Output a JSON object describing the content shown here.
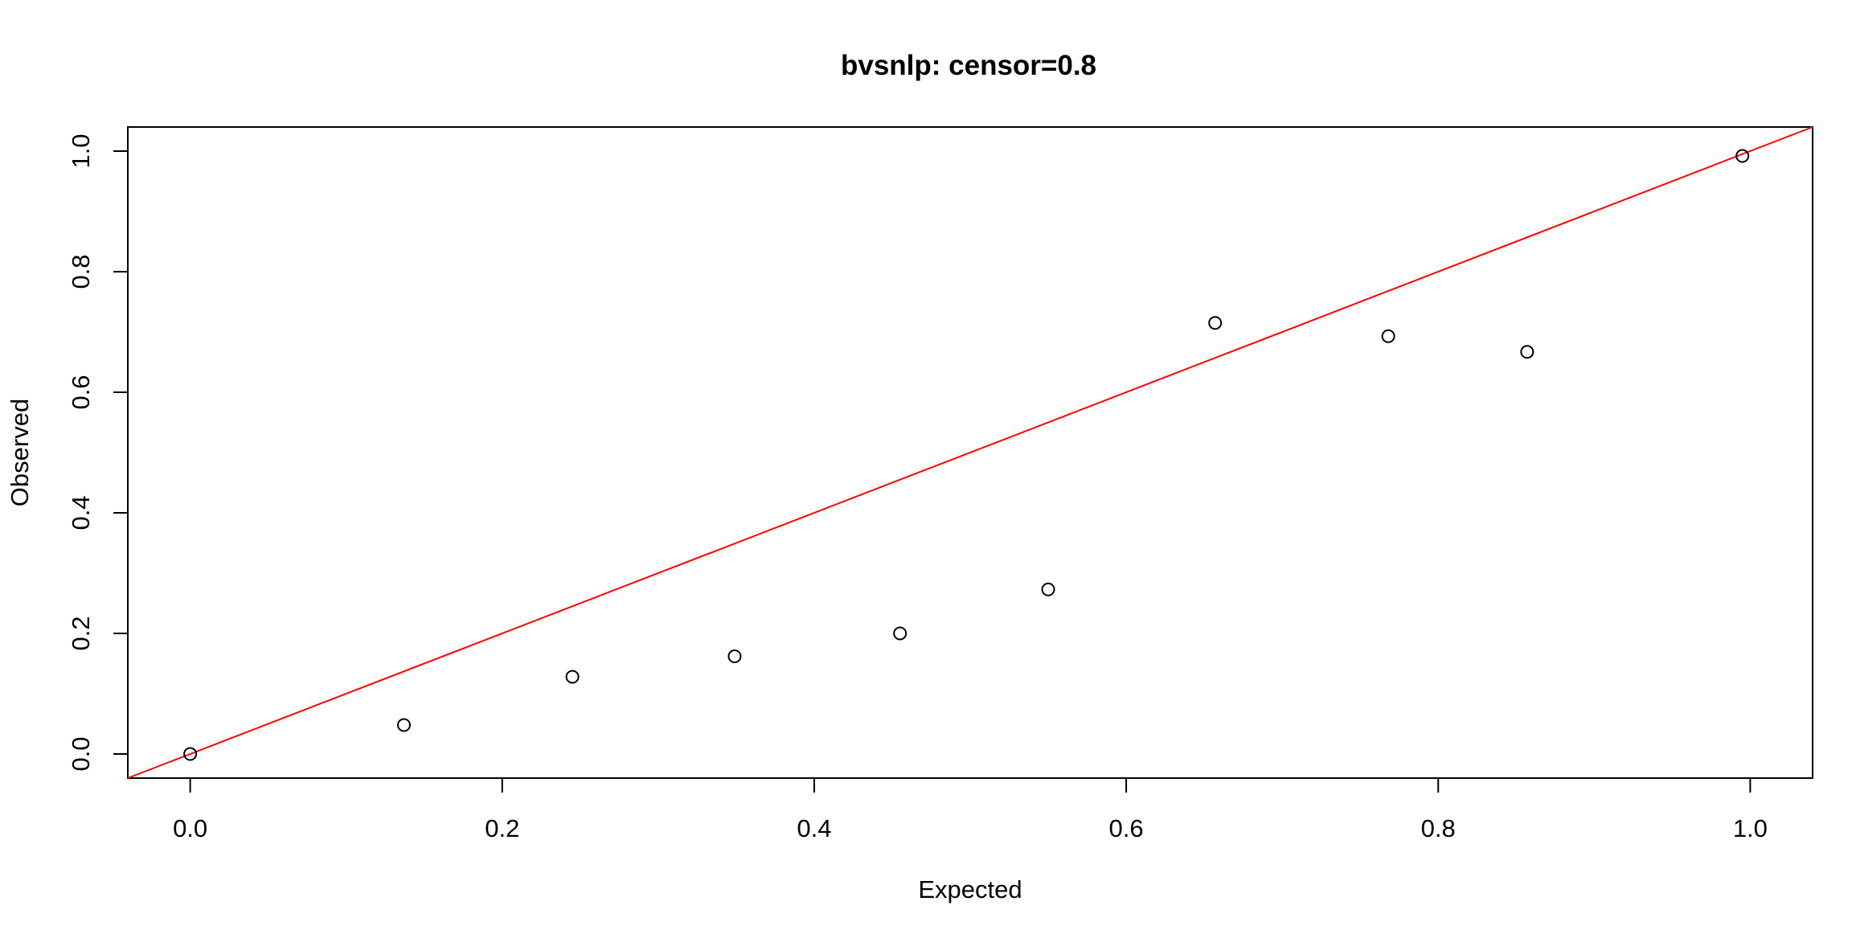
{
  "chart_data": {
    "type": "scatter",
    "title": "bvsnlp: censor=0.8",
    "xlabel": "Expected",
    "ylabel": "Observed",
    "xlim": [
      -0.04,
      1.04
    ],
    "ylim": [
      -0.04,
      1.04
    ],
    "xticks": [
      0.0,
      0.2,
      0.4,
      0.6,
      0.8,
      1.0
    ],
    "yticks": [
      0.0,
      0.2,
      0.4,
      0.6,
      0.8,
      1.0
    ],
    "xtick_labels": [
      "0.0",
      "0.2",
      "0.4",
      "0.6",
      "0.8",
      "1.0"
    ],
    "ytick_labels": [
      "0.0",
      "0.2",
      "0.4",
      "0.6",
      "0.8",
      "1.0"
    ],
    "grid": false,
    "series": [
      {
        "x": [
          0.0,
          0.137,
          0.245,
          0.349,
          0.455,
          0.55,
          0.657,
          0.768,
          0.857,
          0.995
        ],
        "y": [
          0.0,
          0.048,
          0.128,
          0.162,
          0.2,
          0.273,
          0.715,
          0.693,
          0.667,
          0.992
        ]
      }
    ],
    "reference_line": {
      "intercept": 0,
      "slope": 1
    },
    "colors": {
      "points": "#000000",
      "reference_line": "#ff0000",
      "axes": "#000000"
    }
  }
}
